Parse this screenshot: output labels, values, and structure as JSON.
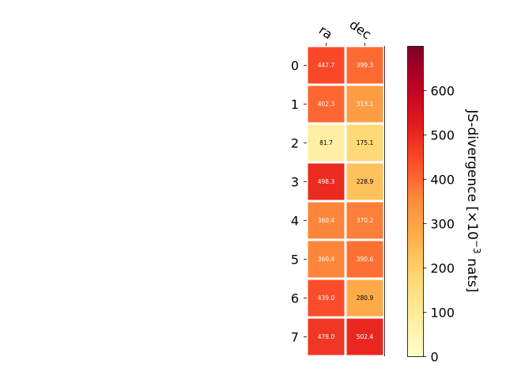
{
  "chart_data": {
    "type": "heatmap",
    "columns": [
      "ra",
      "dec"
    ],
    "rows": [
      "0",
      "1",
      "2",
      "3",
      "4",
      "5",
      "6",
      "7"
    ],
    "values": [
      [
        447.7,
        399.3
      ],
      [
        402.3,
        313.1
      ],
      [
        81.7,
        175.1
      ],
      [
        498.3,
        228.9
      ],
      [
        360.4,
        370.2
      ],
      [
        360.4,
        390.6
      ],
      [
        439.0,
        280.9
      ],
      [
        478.0,
        502.4
      ]
    ],
    "cell_labels": [
      [
        "447.7",
        "399.3"
      ],
      [
        "402.3",
        "313.1"
      ],
      [
        "81.7",
        "175.1"
      ],
      [
        "498.3",
        "228.9"
      ],
      [
        "360.4",
        "370.2"
      ],
      [
        "360.4",
        "390.6"
      ],
      [
        "439.0",
        "280.9"
      ],
      [
        "478.0",
        "502.4"
      ]
    ],
    "colormap": "YlOrRd",
    "color_range": [
      0,
      700
    ],
    "colorbar": {
      "label": "JS-divergence [×10",
      "label_exponent": "−3",
      "label_suffix": " nats]",
      "ticks": [
        0,
        100,
        200,
        300,
        400,
        500,
        600
      ]
    },
    "title": "",
    "xlabel": "",
    "ylabel": "",
    "grid": false,
    "legend": "none"
  }
}
